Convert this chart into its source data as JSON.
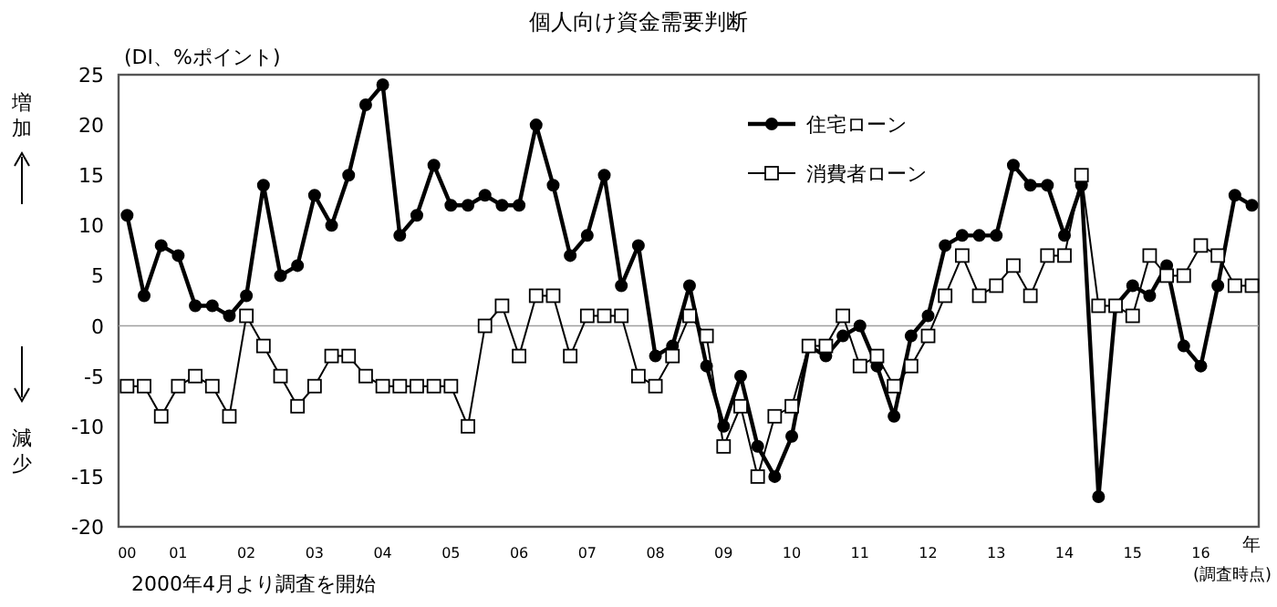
{
  "chart_data": {
    "type": "line",
    "title": "個人向け資金需要判断",
    "ylabel": "(DI、%ポイント)",
    "xlabel": "年",
    "annotations": [
      "増加",
      "減少",
      "(調査時点)",
      "2000年4月より調査を開始"
    ],
    "categories": [
      "00",
      null,
      null,
      "01",
      null,
      null,
      null,
      "02",
      null,
      null,
      null,
      "03",
      null,
      null,
      null,
      "04",
      null,
      null,
      null,
      "05",
      null,
      null,
      null,
      "06",
      null,
      null,
      null,
      "07",
      null,
      null,
      null,
      "08",
      null,
      null,
      null,
      "09",
      null,
      null,
      null,
      "10",
      null,
      null,
      null,
      "11",
      null,
      null,
      null,
      "12",
      null,
      null,
      null,
      "13",
      null,
      null,
      null,
      "14",
      null,
      null,
      null,
      "15",
      null,
      null,
      null,
      "16",
      null,
      null,
      null
    ],
    "series": [
      {
        "name": "住宅ローン",
        "color": "#000000",
        "marker": "circle",
        "values": [
          11,
          3,
          8,
          7,
          2,
          2,
          1,
          3,
          14,
          5,
          6,
          13,
          10,
          15,
          22,
          24,
          9,
          11,
          16,
          12,
          12,
          13,
          12,
          12,
          20,
          14,
          7,
          9,
          15,
          4,
          8,
          -3,
          -2,
          4,
          -4,
          -10,
          -5,
          -12,
          -15,
          -11,
          -2,
          -3,
          -1,
          0,
          -4,
          -9,
          -1,
          1,
          8,
          9,
          9,
          9,
          16,
          14,
          14,
          9,
          14,
          -17,
          2,
          4,
          3,
          6,
          -2,
          -4,
          4,
          13,
          12
        ]
      },
      {
        "name": "消費者ローン",
        "color": "#000000",
        "marker": "square",
        "values": [
          -6,
          -6,
          -9,
          -6,
          -5,
          -6,
          -9,
          1,
          -2,
          -5,
          -8,
          -6,
          -3,
          -3,
          -5,
          -6,
          -6,
          -6,
          -6,
          -6,
          -10,
          0,
          2,
          -3,
          3,
          3,
          -3,
          1,
          1,
          1,
          -5,
          -6,
          -3,
          1,
          -1,
          -12,
          -8,
          -15,
          -9,
          -8,
          -2,
          -2,
          1,
          -4,
          -3,
          -6,
          -4,
          -1,
          3,
          7,
          3,
          4,
          6,
          3,
          7,
          7,
          15,
          2,
          2,
          1,
          7,
          5,
          5,
          8,
          7,
          4,
          4
        ]
      }
    ],
    "ylim": [
      -20,
      25
    ],
    "yticks": [
      -20,
      -15,
      -10,
      -5,
      0,
      5,
      10,
      15,
      20,
      25
    ],
    "ref_lines": [
      {
        "axis": "y",
        "value": 0,
        "color": "#a0a0a0"
      }
    ],
    "legend": "top right",
    "grid": false
  }
}
